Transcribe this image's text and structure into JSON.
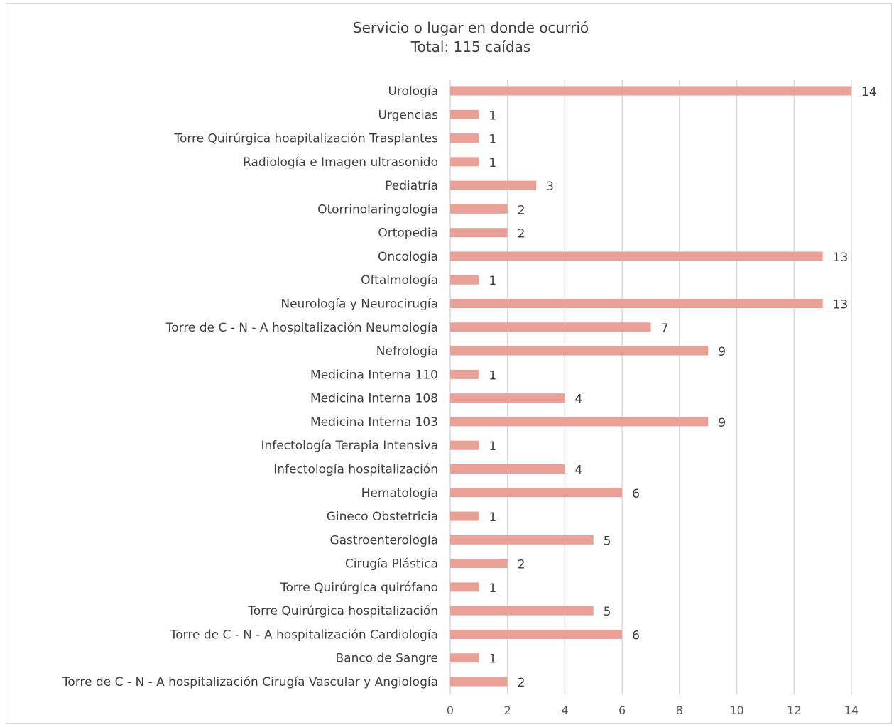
{
  "chart_data": {
    "type": "bar",
    "orientation": "horizontal",
    "title": "Servicio o lugar en donde ocurrió",
    "subtitle": "Total: 115 caídas",
    "categories": [
      "Urología",
      "Urgencias",
      "Torre Quirúrgica hoapitalización Trasplantes",
      "Radiología e Imagen ultrasonido",
      "Pediatría",
      "Otorrinolaringología",
      "Ortopedia",
      "Oncología",
      "Oftalmología",
      "Neurología y Neurocirugía",
      "Torre de C - N - A hospitalización Neumología",
      "Nefrología",
      "Medicina Interna 110",
      "Medicina Interna 108",
      "Medicina Interna 103",
      "Infectología Terapia Intensiva",
      "Infectología hospitalización",
      "Hematología",
      "Gineco Obstetricia",
      "Gastroenterología",
      "Cirugía Plástica",
      "Torre Quirúrgica quirófano",
      "Torre Quirúrgica hospitalización",
      "Torre de C - N - A hospitalización Cardiología",
      "Banco de Sangre",
      "Torre de C - N - A hospitalización Cirugía Vascular y Angiología"
    ],
    "values": [
      14,
      1,
      1,
      1,
      3,
      2,
      2,
      13,
      1,
      13,
      7,
      9,
      1,
      4,
      9,
      1,
      4,
      6,
      1,
      5,
      2,
      1,
      5,
      6,
      1,
      2
    ],
    "xlim": [
      0,
      14
    ],
    "xticks": [
      "0",
      "2",
      "4",
      "6",
      "8",
      "10",
      "12",
      "14"
    ],
    "xlabel": "",
    "ylabel": "",
    "grid": "vertical",
    "legend": "none",
    "bar_color": "#e9a197"
  }
}
